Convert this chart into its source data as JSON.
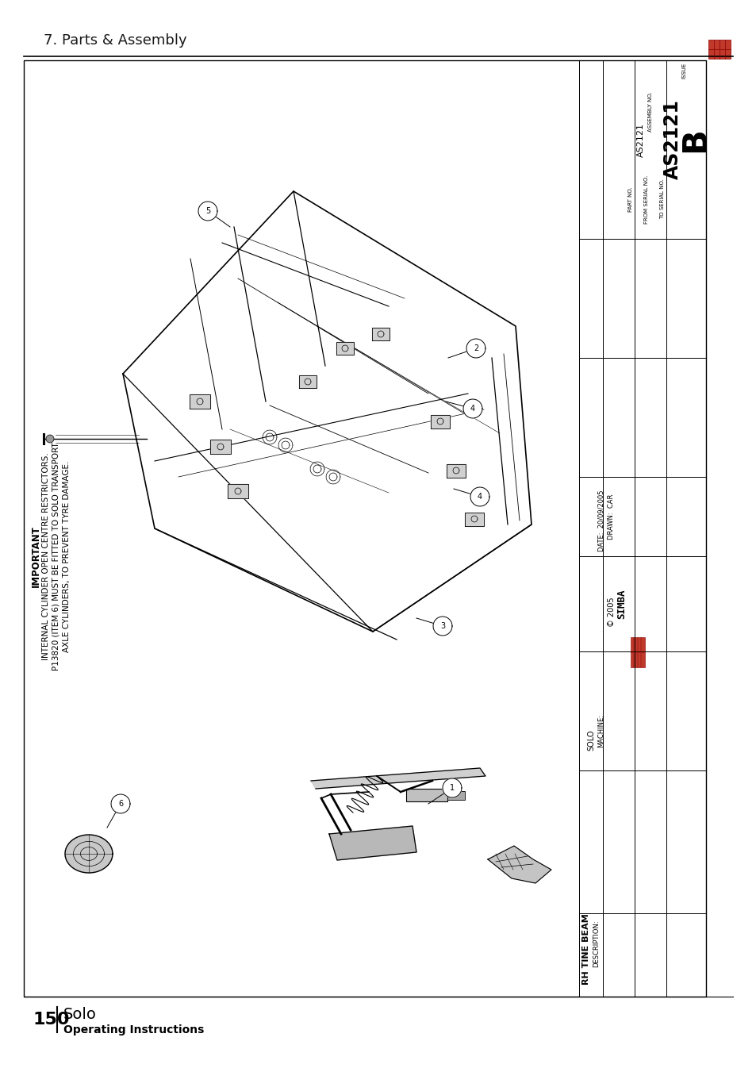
{
  "page_title": "7. Parts & Assembly",
  "page_number": "150",
  "page_subtitle": "Solo",
  "page_footer": "Operating Instructions",
  "bg_color": "#ffffff",
  "border_color": "#000000",
  "title_fontsize": 13,
  "right_panel_labels": {
    "issue": "ISSUE",
    "issue_val": "B",
    "drawing_no": "AS2121",
    "assembly_no": "AS2121",
    "part_no_label": "PART NO.",
    "from_serial": "FROM SERIAL NO.",
    "to_serial": "TO SERIAL NO.",
    "drawn_label": "DRAWN:  CAR",
    "date_label": "DATE:  20/09/2005",
    "simba": "SIMBA © 2005",
    "machine_label": "MACHINE:",
    "machine_val": "SOLO",
    "description_label": "DESCRIPTION:",
    "description_val": "RH TINE BEAM"
  },
  "important_text": [
    "IMPORTANT",
    "INTERNAL CYLINDER OPEN CENTRE RESTRICTORS.",
    "P13820 (ITEM 6) MUST BE FITTED TO SOLO TRANSPORT",
    "AXLE CYLINDERS, TO PREVENT TYRE DAMAGE."
  ],
  "item_labels": [
    "1",
    "2",
    "3",
    "4",
    "5",
    "6"
  ]
}
